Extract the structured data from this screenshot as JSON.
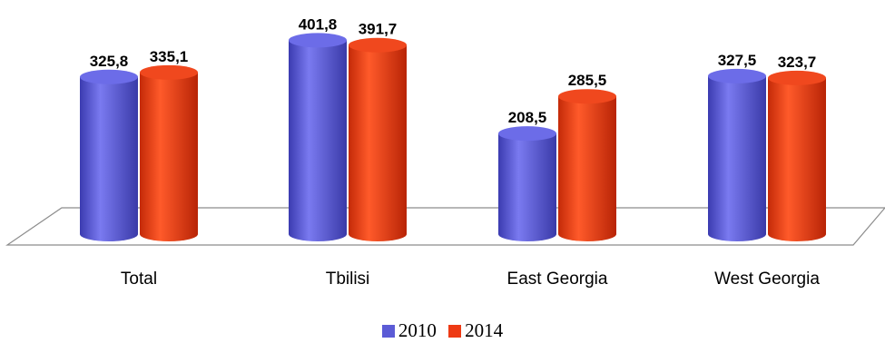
{
  "chart_data": {
    "type": "bar",
    "style": "3d-cylinder",
    "categories": [
      "Total",
      "Tbilisi",
      "East Georgia",
      "West Georgia"
    ],
    "series": [
      {
        "name": "2010",
        "values": [
          325.8,
          401.8,
          208.5,
          327.5
        ],
        "labels": [
          "325,8",
          "401,8",
          "208,5",
          "327,5"
        ],
        "color": "#5b5bd6"
      },
      {
        "name": "2014",
        "values": [
          335.1,
          391.7,
          285.5,
          323.7
        ],
        "labels": [
          "335,1",
          "391,7",
          "285,5",
          "323,7"
        ],
        "color": "#ee3a14"
      }
    ],
    "ylim": [
      0,
      410
    ],
    "grid": false,
    "legend": "bottom"
  }
}
